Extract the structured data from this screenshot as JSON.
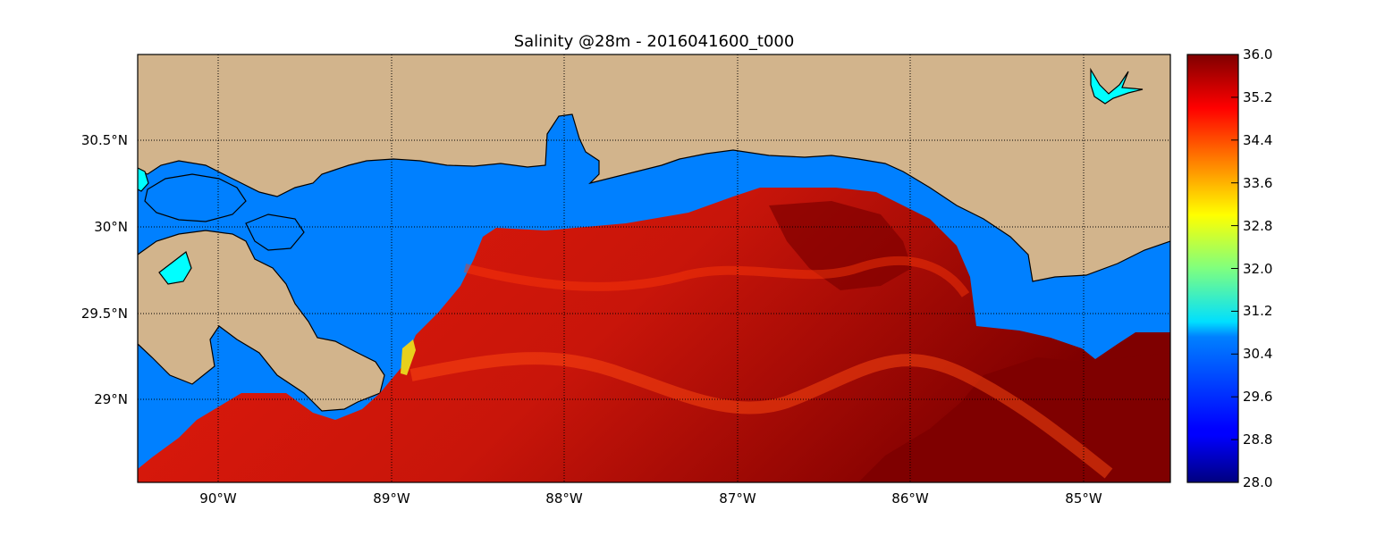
{
  "title": "Salinity @28m - 2016041600_t000",
  "variable": "Salinity",
  "depth": "28m",
  "run": "2016041600_t000",
  "map": {
    "lon_range": [
      -90.5,
      -84.5
    ],
    "lat_range": [
      28.55,
      31.0
    ],
    "lon_ticks": [
      "90°W",
      "89°W",
      "88°W",
      "87°W",
      "86°W",
      "85°W"
    ],
    "lat_ticks": [
      "30.5°N",
      "30°N",
      "29.5°N",
      "29°N"
    ],
    "gridlines": "dotted",
    "land_color": "#d2b48c",
    "low_salinity_water_color": "#0080ff",
    "colormap": "jet"
  },
  "colorbar": {
    "min": 28.0,
    "max": 36.0,
    "tick_labels": [
      "36.0",
      "35.2",
      "34.4",
      "33.6",
      "32.8",
      "32.0",
      "31.2",
      "30.4",
      "29.6",
      "28.8",
      "28.0"
    ]
  }
}
